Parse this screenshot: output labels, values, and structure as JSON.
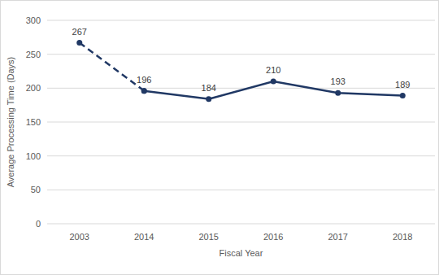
{
  "chart_data": {
    "type": "line",
    "x_label": "Fiscal Year",
    "y_label": "Average Processing Time (Days)",
    "categories": [
      "2003",
      "2014",
      "2015",
      "2016",
      "2017",
      "2018"
    ],
    "series": [
      {
        "values": [
          267,
          196,
          null,
          null,
          null,
          null
        ],
        "color": "#203864",
        "line_style": "dashed",
        "marker": "circle"
      },
      {
        "values": [
          null,
          196,
          184,
          210,
          193,
          189
        ],
        "color": "#203864",
        "line_style": "solid",
        "marker": "circle"
      }
    ],
    "ylim": [
      0,
      300
    ],
    "yticks": [
      0,
      50,
      100,
      150,
      200,
      250,
      300
    ],
    "grid": true,
    "data_labels": true
  }
}
